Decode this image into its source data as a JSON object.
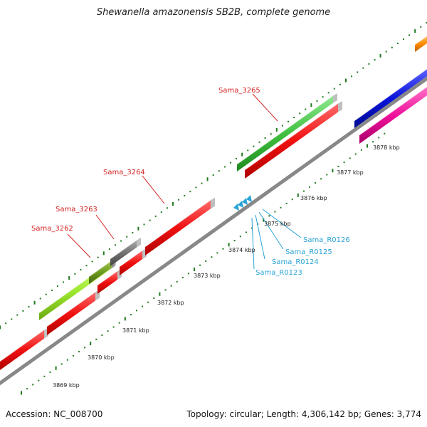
{
  "title": "Shewanella amazonensis SB2B, complete genome",
  "footer": {
    "accession": "Accession: NC_008700",
    "summary": "Topology: circular; Length: 4,306,142 bp; Genes: 3,774"
  },
  "colors": {
    "background": "#ffffff",
    "backbone": "#888888",
    "tick": "#1f7a1f",
    "cds": "#f01010",
    "gene_green": "#40c040",
    "gene_lightgreen": "#9ee830",
    "gene_olive": "#6c9a20",
    "gene_gray": "#707070",
    "gene_blue": "#0a14d8",
    "gene_pink": "#f0109a",
    "gene_orange": "#ff8a00",
    "rna": "#2aa3d6"
  },
  "scale_labels": [
    "3869 kbp",
    "3870 kbp",
    "3871 kbp",
    "3872 kbp",
    "3873 kbp",
    "3874 kbp",
    "3875 kbp",
    "3876 kbp",
    "3877 kbp",
    "3878 kbp"
  ],
  "gene_labels": [
    "Sama_3262",
    "Sama_3263",
    "Sama_3264",
    "Sama_3265"
  ],
  "rna_labels": [
    "Sama_R0123",
    "Sama_R0124",
    "Sama_R0125",
    "Sama_R0126"
  ]
}
